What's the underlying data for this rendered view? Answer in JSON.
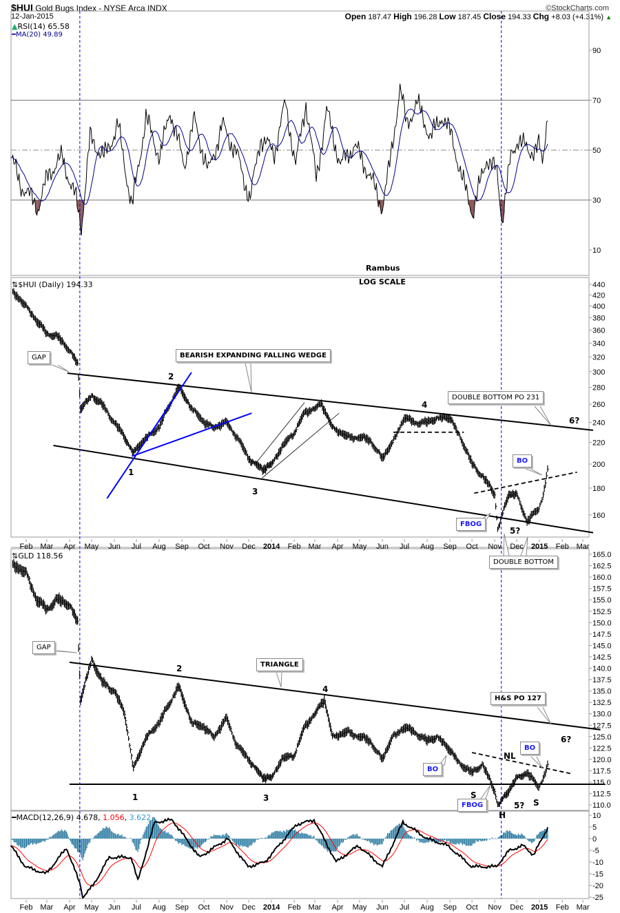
{
  "header": {
    "symbol": "$HUI",
    "name": "Gold Bugs Index - NYSE Arca INDX",
    "date": "12-Jan-2015",
    "brand": "©StockCharts.com",
    "open_label": "Open",
    "open": "187.47",
    "high_label": "High",
    "high": "196.28",
    "low_label": "Low",
    "low": "187.45",
    "close_label": "Close",
    "close": "194.33",
    "chg_label": "Chg",
    "chg": "+8.03 (+4.31%)",
    "up_arrow": "▲"
  },
  "colors": {
    "price": "#000000",
    "rsi": "#000000",
    "rsi_ma": "#00008b",
    "macd": "#000000",
    "signal": "#ff0000",
    "histogram": "#2a7aa0",
    "event_line": "#0000ff",
    "rsi_oversold_fill": "#8b5a5a",
    "blue_trend": "#0000ff"
  },
  "chart_data": [
    {
      "type": "line",
      "panel": "RSI",
      "legend": [
        "RSI(14) 65.58",
        "MA(20) 49.89"
      ],
      "ylim": [
        0,
        100
      ],
      "yticks": [
        90,
        70,
        50,
        30,
        10
      ],
      "reference_lines": [
        70,
        50,
        30
      ],
      "series": [
        {
          "name": "RSI(14)",
          "dates": [
            "2013-01-11",
            "2013-01-25",
            "2013-02-17",
            "2013-03-04",
            "2013-03-22",
            "2013-04-10",
            "2013-04-17",
            "2013-04-29",
            "2013-05-18",
            "2013-06-06",
            "2013-06-25",
            "2013-07-14",
            "2013-08-02",
            "2013-08-16",
            "2013-09-04",
            "2013-09-18",
            "2013-10-07",
            "2013-10-26",
            "2013-11-14",
            "2013-12-03",
            "2013-12-17",
            "2014-01-05",
            "2014-01-20",
            "2014-02-03",
            "2014-02-17",
            "2014-03-03",
            "2014-03-17",
            "2014-04-05",
            "2014-04-24",
            "2014-05-13",
            "2014-06-01",
            "2014-06-11",
            "2014-06-25",
            "2014-07-04",
            "2014-07-18",
            "2014-08-06",
            "2014-08-21",
            "2014-09-04",
            "2014-09-18",
            "2014-10-02",
            "2014-10-21",
            "2014-11-04",
            "2014-11-11",
            "2014-11-23",
            "2014-12-03",
            "2014-12-17",
            "2014-12-31",
            "2015-01-05",
            "2015-01-12"
          ],
          "values": [
            47,
            36,
            27,
            41,
            47,
            30,
            19,
            55,
            47,
            60,
            27,
            63,
            47,
            66,
            44,
            62,
            41,
            60,
            49,
            30,
            55,
            49,
            69,
            44,
            69,
            38,
            66,
            44,
            52,
            41,
            27,
            44,
            75,
            60,
            69,
            55,
            64,
            55,
            38,
            25,
            47,
            41,
            22,
            47,
            55,
            49,
            52,
            44,
            65.58
          ]
        }
      ]
    },
    {
      "type": "ohlc",
      "panel": "$HUI",
      "legend": "$HUI (Daily) 194.33",
      "scale": "log",
      "ylim": [
        150,
        450
      ],
      "yticks": [
        440,
        420,
        400,
        380,
        360,
        340,
        320,
        300,
        280,
        260,
        240,
        220,
        200,
        180,
        160
      ],
      "xticks": [
        "Feb",
        "Mar",
        "Apr",
        "May",
        "Jun",
        "Jul",
        "Aug",
        "Sep",
        "Oct",
        "Nov",
        "Dec",
        "2014",
        "Feb",
        "Mar",
        "Apr",
        "May",
        "Jun",
        "Jul",
        "Aug",
        "Sep",
        "Oct",
        "Nov",
        "Dec",
        "2015",
        "Feb",
        "Mar"
      ],
      "dates": [
        "2013-01-08",
        "2013-02-01",
        "2013-02-15",
        "2013-03-01",
        "2013-03-15",
        "2013-04-01",
        "2013-04-12",
        "2013-04-16",
        "2013-05-01",
        "2013-05-15",
        "2013-06-01",
        "2013-06-15",
        "2013-06-27",
        "2013-07-15",
        "2013-08-01",
        "2013-08-27",
        "2013-09-15",
        "2013-10-01",
        "2013-10-15",
        "2013-11-01",
        "2013-11-15",
        "2013-12-01",
        "2013-12-20",
        "2014-01-01",
        "2014-01-15",
        "2014-02-01",
        "2014-02-15",
        "2014-03-10",
        "2014-03-25",
        "2014-04-15",
        "2014-05-01",
        "2014-05-15",
        "2014-06-01",
        "2014-06-15",
        "2014-07-01",
        "2014-07-15",
        "2014-08-01",
        "2014-08-15",
        "2014-09-01",
        "2014-09-15",
        "2014-10-01",
        "2014-10-15",
        "2014-11-01",
        "2014-11-05",
        "2014-11-20",
        "2014-12-01",
        "2014-12-15",
        "2014-12-31",
        "2015-01-06",
        "2015-01-12"
      ],
      "values": [
        432,
        400,
        375,
        355,
        350,
        330,
        310,
        255,
        270,
        260,
        240,
        225,
        210,
        225,
        235,
        280,
        255,
        240,
        235,
        240,
        225,
        205,
        195,
        200,
        215,
        230,
        250,
        260,
        235,
        225,
        225,
        222,
        205,
        220,
        245,
        240,
        240,
        245,
        245,
        225,
        200,
        190,
        175,
        150,
        175,
        175,
        155,
        165,
        175,
        194.33
      ],
      "trendlines": [
        {
          "name": "wedge-upper",
          "from": [
            "2013-03-29",
            298
          ],
          "to": [
            "2015-03-15",
            232
          ]
        },
        {
          "name": "wedge-lower",
          "from": [
            "2013-03-10",
            217
          ],
          "to": [
            "2015-03-15",
            148
          ]
        },
        {
          "name": "blue-upper",
          "from": [
            "2013-05-22",
            172
          ],
          "to": [
            "2013-09-14",
            299
          ],
          "color": "blue"
        },
        {
          "name": "blue-lower",
          "from": [
            "2013-06-25",
            207
          ],
          "to": [
            "2013-12-05",
            250
          ],
          "color": "blue"
        },
        {
          "name": "channel-lower",
          "from": [
            "2013-12-19",
            188
          ],
          "to": [
            "2014-04-03",
            250
          ],
          "thin": true
        },
        {
          "name": "channel-upper",
          "from": [
            "2013-12-11",
            201
          ],
          "to": [
            "2014-02-15",
            262
          ],
          "thin": true
        },
        {
          "name": "top-support",
          "from": [
            "2014-06-16",
            230
          ],
          "to": [
            "2014-09-20",
            230
          ],
          "dashed": true
        },
        {
          "name": "neckline",
          "from": [
            "2014-10-04",
            176
          ],
          "to": [
            "2015-02-21",
            193
          ],
          "dashed": true
        }
      ],
      "annotations": [
        "Rambus",
        "LOG SCALE",
        "GAP",
        "BEARISH EXPANDING FALLING WEDGE",
        "1",
        "2",
        "3",
        "4",
        "5?",
        "6?",
        "DOUBLE BOTTOM PO 231",
        "BO",
        "FBOG",
        "DOUBLE BOTTOM"
      ]
    },
    {
      "type": "ohlc",
      "panel": "GLD",
      "legend": "GLD 118.56",
      "scale": "linear",
      "ylim": [
        108,
        166
      ],
      "yticks": [
        165.0,
        162.5,
        160.0,
        157.5,
        155.0,
        152.5,
        150.0,
        147.5,
        145.0,
        142.5,
        140.0,
        137.5,
        135.0,
        132.5,
        130.0,
        127.5,
        125.0,
        122.5,
        120.0,
        117.5,
        115.0,
        112.5,
        110.0
      ],
      "dates": [
        "2013-01-08",
        "2013-02-01",
        "2013-02-15",
        "2013-03-01",
        "2013-03-15",
        "2013-04-01",
        "2013-04-12",
        "2013-04-16",
        "2013-05-01",
        "2013-05-15",
        "2013-06-01",
        "2013-06-15",
        "2013-06-27",
        "2013-07-15",
        "2013-08-01",
        "2013-08-27",
        "2013-09-15",
        "2013-10-01",
        "2013-10-15",
        "2013-11-01",
        "2013-11-15",
        "2013-12-01",
        "2013-12-20",
        "2014-01-01",
        "2014-01-15",
        "2014-02-01",
        "2014-02-15",
        "2014-03-14",
        "2014-03-25",
        "2014-04-15",
        "2014-05-01",
        "2014-05-15",
        "2014-06-01",
        "2014-06-15",
        "2014-07-01",
        "2014-07-15",
        "2014-08-01",
        "2014-08-15",
        "2014-09-01",
        "2014-09-15",
        "2014-10-01",
        "2014-10-15",
        "2014-11-01",
        "2014-11-05",
        "2014-11-20",
        "2014-12-01",
        "2014-12-15",
        "2014-12-31",
        "2015-01-06",
        "2015-01-12"
      ],
      "values": [
        163,
        161,
        155,
        153,
        155,
        154,
        150,
        133,
        142,
        137,
        135,
        130,
        118,
        125,
        128,
        136,
        128,
        127,
        125,
        129,
        123,
        120,
        116,
        116,
        120,
        121,
        127,
        133,
        125,
        126,
        125,
        124,
        120,
        125,
        127,
        126,
        124,
        125,
        122,
        119,
        117,
        119,
        113,
        110,
        113,
        116,
        117,
        114,
        116,
        118.56
      ],
      "trendlines": [
        {
          "name": "triangle-upper",
          "from": [
            "2013-04-01",
            141.3
          ],
          "to": [
            "2015-03-25",
            126.5
          ]
        },
        {
          "name": "triangle-lower",
          "from": [
            "2013-04-01",
            114.55
          ],
          "to": [
            "2015-03-31",
            114.55
          ]
        },
        {
          "name": "neckline",
          "from": [
            "2014-10-01",
            121.5
          ],
          "to": [
            "2015-02-15",
            116.8
          ],
          "dashed": true
        }
      ],
      "annotations": [
        "GAP",
        "TRIANGLE",
        "1",
        "2",
        "3",
        "4",
        "5?",
        "6?",
        "H&S PO 127",
        "BO",
        "BO",
        "FBOG",
        "NL",
        "S",
        "H",
        "S"
      ]
    },
    {
      "type": "line",
      "panel": "MACD",
      "legend": {
        "label": "MACD(12,26,9)",
        "macd": "4.678",
        "signal": "1.056",
        "hist": "3.622"
      },
      "ylim": [
        -26,
        11
      ],
      "yticks": [
        10,
        5,
        0,
        -5,
        -10,
        -15,
        -20,
        -25
      ],
      "xticks": [
        "Feb",
        "Mar",
        "Apr",
        "May",
        "Jun",
        "Jul",
        "Aug",
        "Sep",
        "Oct",
        "Nov",
        "Dec",
        "2014",
        "Feb",
        "Mar",
        "Apr",
        "May",
        "Jun",
        "Jul",
        "Aug",
        "Sep",
        "Oct",
        "Nov",
        "Dec",
        "2015",
        "Feb",
        "Mar"
      ],
      "dates": [
        "2013-01-11",
        "2013-01-31",
        "2013-02-28",
        "2013-03-28",
        "2013-04-16",
        "2013-04-19",
        "2013-05-03",
        "2013-05-25",
        "2013-06-24",
        "2013-07-03",
        "2013-07-26",
        "2013-08-19",
        "2013-09-25",
        "2013-11-02",
        "2013-11-30",
        "2013-12-23",
        "2014-02-04",
        "2014-02-28",
        "2014-03-30",
        "2014-04-29",
        "2014-06-01",
        "2014-06-29",
        "2014-08-01",
        "2014-08-29",
        "2014-10-01",
        "2014-11-03",
        "2014-11-21",
        "2014-12-10",
        "2014-12-24",
        "2015-01-12"
      ],
      "values": [
        -3,
        -12,
        -15,
        -4,
        -20,
        -25,
        -20,
        -8,
        -8,
        -18,
        7,
        8,
        -8,
        0,
        -12,
        -10,
        6,
        8,
        -10,
        -3,
        -12,
        7,
        0,
        -3,
        -12,
        -12,
        -5,
        -3,
        -7,
        4.678
      ]
    }
  ],
  "event_lines": [
    "2013-04-15",
    "2014-11-10"
  ],
  "labels": {
    "rambus": "Rambus",
    "log_scale": "LOG SCALE",
    "gap": "GAP",
    "wedge": "BEARISH EXPANDING FALLING WEDGE",
    "n1": "1",
    "n2": "2",
    "n3": "3",
    "n4": "4",
    "n5": "5?",
    "n6": "6?",
    "db_po": "DOUBLE BOTTOM PO 231",
    "bo": "BO",
    "fbog": "FBOG",
    "double_bottom": "DOUBLE BOTTOM",
    "triangle": "TRIANGLE",
    "hs_po": "H&S PO 127",
    "nl": "NL",
    "s": "S",
    "h": "H"
  }
}
